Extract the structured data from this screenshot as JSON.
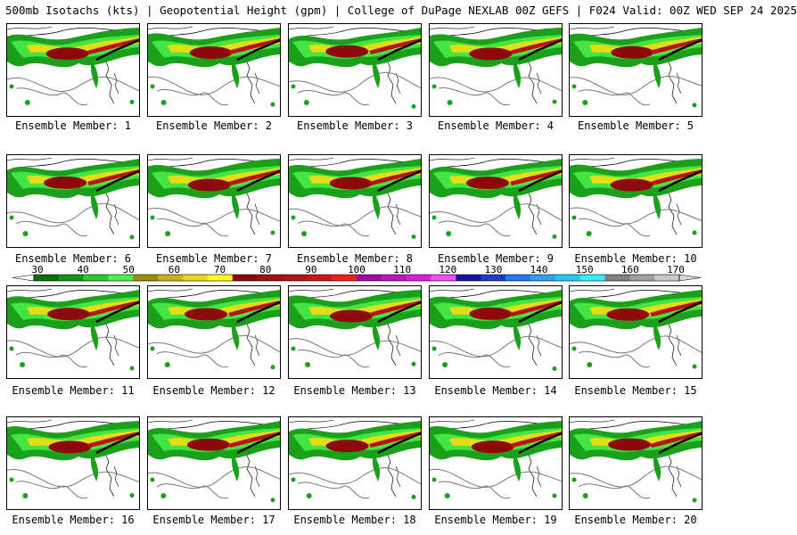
{
  "title": "500mb Isotachs (kts) | Geopotential Height (gpm) | College of DuPage NEXLAB   00Z GEFS | F024 Valid: 00Z WED SEP 24 2025",
  "members": [
    {
      "label": "Ensemble Member: 1"
    },
    {
      "label": "Ensemble Member: 2"
    },
    {
      "label": "Ensemble Member: 3"
    },
    {
      "label": "Ensemble Member: 4"
    },
    {
      "label": "Ensemble Member: 5"
    },
    {
      "label": "Ensemble Member: 6"
    },
    {
      "label": "Ensemble Member: 7"
    },
    {
      "label": "Ensemble Member: 8"
    },
    {
      "label": "Ensemble Member: 9"
    },
    {
      "label": "Ensemble Member: 10"
    },
    {
      "label": "Ensemble Member: 11"
    },
    {
      "label": "Ensemble Member: 12"
    },
    {
      "label": "Ensemble Member: 13"
    },
    {
      "label": "Ensemble Member: 14"
    },
    {
      "label": "Ensemble Member: 15"
    },
    {
      "label": "Ensemble Member: 16"
    },
    {
      "label": "Ensemble Member: 17"
    },
    {
      "label": "Ensemble Member: 18"
    },
    {
      "label": "Ensemble Member: 19"
    },
    {
      "label": "Ensemble Member: 20"
    }
  ],
  "colorbar": {
    "labels": [
      "30",
      "40",
      "50",
      "60",
      "70",
      "80",
      "90",
      "100",
      "110",
      "120",
      "130",
      "140",
      "150",
      "160",
      "170"
    ],
    "colors": [
      "#0a6e0a",
      "#12961a",
      "#2ec82e",
      "#4cf04c",
      "#9a8a10",
      "#c8b414",
      "#e6dc14",
      "#ffff1e",
      "#8c0a0a",
      "#a01010",
      "#b41414",
      "#d21414",
      "#f01e1e",
      "#9e0aa0",
      "#be14be",
      "#dc1edc",
      "#f050f0",
      "#1414a0",
      "#1e3cd2",
      "#2878f0",
      "#32a0f0",
      "#28c8f5",
      "#32f0ff",
      "#808080",
      "#a0a0a0",
      "#c8c8c8"
    ]
  }
}
